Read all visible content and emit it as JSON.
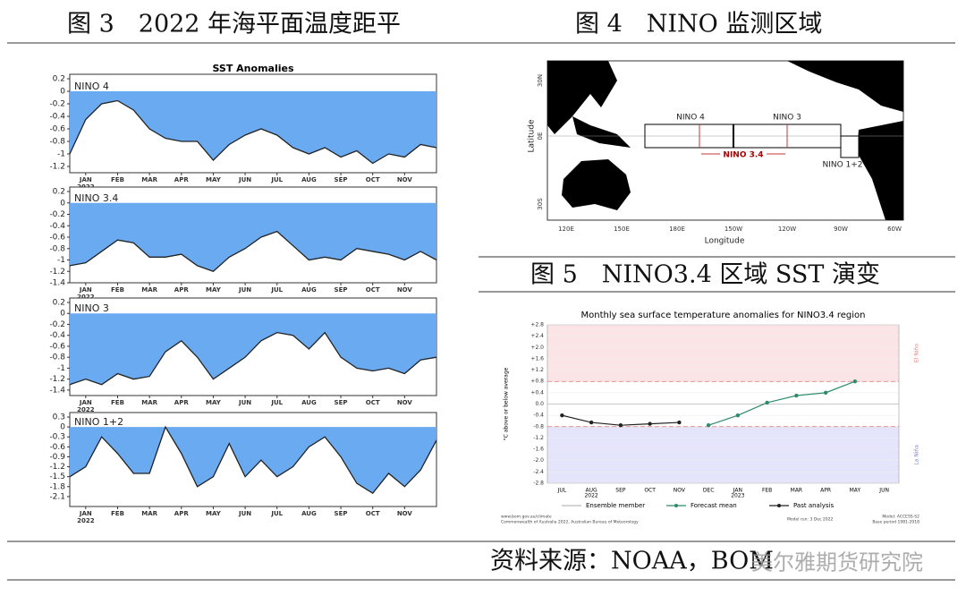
{
  "captions": {
    "fig3": "图 3　2022 年海平面温度距平",
    "fig4": "图 4　NINO 监测区域",
    "fig5": "图 5　NINO3.4 区域 SST 演变",
    "source": "资料来源：NOAA，BOM",
    "watermark": "美尔雅期货研究院"
  },
  "map": {
    "latitude_label": "Latitude",
    "longitude_label": "Longitude",
    "lat_ticks": [
      "30N",
      "0E",
      "30S"
    ],
    "lon_ticks": [
      "120E",
      "150E",
      "180E",
      "150W",
      "120W",
      "90W",
      "60W"
    ],
    "regions": [
      "NINO 4",
      "NINO 3",
      "NINO 3.4",
      "NINO 1+2"
    ]
  },
  "chart_data": [
    {
      "type": "area",
      "title": "SST Anomalies",
      "annotation": "NINO 4",
      "color": "#6aaaf0",
      "categories": [
        null,
        "JAN",
        null,
        "FEB",
        null,
        "MAR",
        null,
        "APR",
        null,
        "MAY",
        null,
        "JUN",
        null,
        "JUL",
        null,
        "AUG",
        null,
        "SEP",
        null,
        "OCT",
        null,
        "NOV",
        null,
        null
      ],
      "categories_year": [
        null,
        "2022",
        null,
        null,
        null,
        null,
        null,
        null,
        null,
        null,
        null,
        null,
        null,
        null,
        null,
        null,
        null,
        null,
        null,
        null,
        null,
        null,
        null,
        null
      ],
      "values": [
        -1.0,
        -0.45,
        -0.2,
        -0.15,
        -0.3,
        -0.6,
        -0.75,
        -0.8,
        -0.8,
        -1.1,
        -0.85,
        -0.7,
        -0.6,
        -0.7,
        -0.9,
        -1.0,
        -0.9,
        -1.05,
        -0.95,
        -1.15,
        -1.0,
        -1.05,
        -0.85,
        -0.9
      ],
      "ylim": [
        -1.3,
        0.2
      ],
      "yticks": [
        0.2,
        0,
        -0.2,
        -0.4,
        -0.6,
        -0.8,
        -1,
        -1.2
      ]
    },
    {
      "type": "area",
      "annotation": "NINO 3.4",
      "color": "#6aaaf0",
      "categories": [
        null,
        "JAN",
        null,
        "FEB",
        null,
        "MAR",
        null,
        "APR",
        null,
        "MAY",
        null,
        "JUN",
        null,
        "JUL",
        null,
        "AUG",
        null,
        "SEP",
        null,
        "OCT",
        null,
        "NOV",
        null,
        null
      ],
      "categories_year": [
        null,
        "2022",
        null,
        null,
        null,
        null,
        null,
        null,
        null,
        null,
        null,
        null,
        null,
        null,
        null,
        null,
        null,
        null,
        null,
        null,
        null,
        null,
        null,
        null
      ],
      "values": [
        -1.1,
        -1.05,
        -0.85,
        -0.65,
        -0.7,
        -0.95,
        -0.95,
        -0.9,
        -1.1,
        -1.2,
        -0.95,
        -0.8,
        -0.6,
        -0.5,
        -0.75,
        -1.0,
        -0.95,
        -1.0,
        -0.8,
        -0.85,
        -0.9,
        -1.0,
        -0.85,
        -1.0
      ],
      "ylim": [
        -1.4,
        0.2
      ],
      "yticks": [
        0.2,
        0,
        -0.2,
        -0.4,
        -0.6,
        -0.8,
        -1,
        -1.2,
        -1.4
      ]
    },
    {
      "type": "area",
      "annotation": "NINO 3",
      "color": "#6aaaf0",
      "categories": [
        null,
        "JAN",
        null,
        "FEB",
        null,
        "MAR",
        null,
        "APR",
        null,
        "MAY",
        null,
        "JUN",
        null,
        "JUL",
        null,
        "AUG",
        null,
        "SEP",
        null,
        "OCT",
        null,
        "NOV",
        null,
        null
      ],
      "categories_year": [
        null,
        "2022",
        null,
        null,
        null,
        null,
        null,
        null,
        null,
        null,
        null,
        null,
        null,
        null,
        null,
        null,
        null,
        null,
        null,
        null,
        null,
        null,
        null,
        null
      ],
      "values": [
        -1.3,
        -1.2,
        -1.3,
        -1.1,
        -1.2,
        -1.15,
        -0.7,
        -0.5,
        -0.8,
        -1.2,
        -1.0,
        -0.8,
        -0.5,
        -0.35,
        -0.4,
        -0.65,
        -0.35,
        -0.8,
        -1.0,
        -1.05,
        -1.0,
        -1.1,
        -0.85,
        -0.8
      ],
      "ylim": [
        -1.5,
        0.2
      ],
      "yticks": [
        0.2,
        0,
        -0.2,
        -0.4,
        -0.6,
        -0.8,
        -1,
        -1.2,
        -1.4
      ]
    },
    {
      "type": "area",
      "annotation": "NINO 1+2",
      "color": "#6aaaf0",
      "categories": [
        null,
        "JAN",
        null,
        "FEB",
        null,
        "MAR",
        null,
        "APR",
        null,
        "MAY",
        null,
        "JUN",
        null,
        "JUL",
        null,
        "AUG",
        null,
        "SEP",
        null,
        "OCT",
        null,
        "NOV",
        null,
        null
      ],
      "categories_year": [
        null,
        "2022",
        null,
        null,
        null,
        null,
        null,
        null,
        null,
        null,
        null,
        null,
        null,
        null,
        null,
        null,
        null,
        null,
        null,
        null,
        null,
        null,
        null,
        null
      ],
      "values": [
        -1.5,
        -1.2,
        -0.3,
        -0.8,
        -1.4,
        -1.4,
        0,
        -0.8,
        -1.8,
        -1.5,
        -0.5,
        -1.5,
        -1.0,
        -1.5,
        -1.2,
        -0.6,
        -0.3,
        -0.9,
        -1.7,
        -2.0,
        -1.4,
        -1.8,
        -1.3,
        -0.4
      ],
      "ylim": [
        -2.4,
        0.3
      ],
      "yticks": [
        0.3,
        0,
        -0.3,
        -0.6,
        -0.9,
        -1.2,
        -1.5,
        -1.8,
        -2.1
      ]
    },
    {
      "type": "line",
      "title": "Monthly sea surface temperature anomalies for NINO3.4 region",
      "y_label": "°C above or below average",
      "categories": [
        "JUL",
        "AUG",
        "SEP",
        "OCT",
        "NOV",
        "DEC",
        "JAN",
        "FEB",
        "MAR",
        "APR",
        "MAY",
        "JUN"
      ],
      "categories_year": [
        null,
        "2022",
        null,
        null,
        null,
        null,
        "2023",
        null,
        null,
        null,
        null,
        null
      ],
      "series": [
        {
          "name": "Past analysis",
          "color": "#222222",
          "values": [
            -0.4,
            -0.65,
            -0.75,
            -0.7,
            -0.65,
            null,
            null,
            null,
            null,
            null,
            null,
            null
          ]
        },
        {
          "name": "Forecast mean",
          "color": "#2e8b6a",
          "values": [
            null,
            null,
            null,
            null,
            null,
            -0.75,
            -0.4,
            0.05,
            0.3,
            0.4,
            0.8,
            null
          ]
        }
      ],
      "legend_extra": {
        "name": "Ensemble member",
        "color": "#bbbbbb"
      },
      "bands": [
        {
          "from": 0.8,
          "to": 2.8,
          "color": "#fbe4e6",
          "label": "El Niño",
          "label_color": "#e08080"
        },
        {
          "from": -0.8,
          "to": -2.8,
          "color": "#e4e4fa",
          "label": "La Niña",
          "label_color": "#8080d0"
        }
      ],
      "thresholds": [
        0.8,
        -0.8
      ],
      "ylim": [
        -2.8,
        2.8
      ],
      "yticks": [
        {
          "value": 2.8,
          "label": "+2.8"
        },
        {
          "value": 2.4,
          "label": "+2.4"
        },
        {
          "value": 2.0,
          "label": "+2.0"
        },
        {
          "value": 1.6,
          "label": "+1.6"
        },
        {
          "value": 1.2,
          "label": "+1.2"
        },
        {
          "value": 0.8,
          "label": "+0.8"
        },
        {
          "value": 0.4,
          "label": "+0.4"
        },
        {
          "value": 0,
          "label": "0.0"
        },
        {
          "value": -0.4,
          "label": "-0.4"
        },
        {
          "value": -0.8,
          "label": "-0.8"
        },
        {
          "value": -1.2,
          "label": "-1.2"
        },
        {
          "value": -1.6,
          "label": "-1.6"
        },
        {
          "value": -2.0,
          "label": "-2.0"
        },
        {
          "value": -2.4,
          "label": "-2.4"
        },
        {
          "value": -2.8,
          "label": "-2.8"
        }
      ],
      "footer": [
        "www.bom.gov.au/climate",
        "Commonwealth of Australia 2022, Australian Bureau of Meteorology",
        "Model run: 3 Dec 2022",
        "Model: ACCESS-S2",
        "Base period 1981-2018"
      ]
    }
  ]
}
